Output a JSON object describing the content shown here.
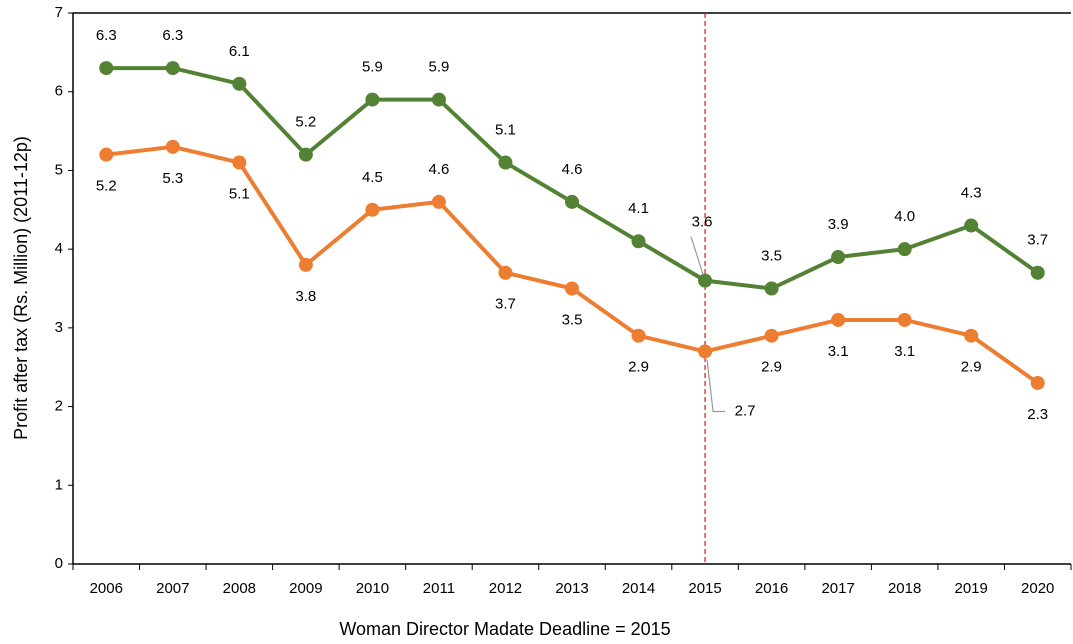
{
  "chart_data": {
    "type": "line",
    "x_label": "Woman Director Madate Deadline = 2015",
    "y_label": "Profit after tax (Rs. Million) (2011-12p)",
    "categories": [
      "2006",
      "2007",
      "2008",
      "2009",
      "2010",
      "2011",
      "2012",
      "2013",
      "2014",
      "2015",
      "2016",
      "2017",
      "2018",
      "2019",
      "2020"
    ],
    "series": [
      {
        "color": "#548235",
        "values": [
          6.3,
          6.3,
          6.1,
          5.2,
          5.9,
          5.9,
          5.1,
          4.6,
          4.1,
          3.6,
          3.5,
          3.9,
          4.0,
          4.3,
          3.7
        ],
        "value_labels": [
          "6.3",
          "6.3",
          "6.1",
          "5.2",
          "5.9",
          "5.9",
          "5.1",
          "4.6",
          "4.1",
          "3.6",
          "3.5",
          "3.9",
          "4.0",
          "4.3",
          "3.7"
        ]
      },
      {
        "color": "#ed7d31",
        "values": [
          5.2,
          5.3,
          5.1,
          3.8,
          4.5,
          4.6,
          3.7,
          3.5,
          2.9,
          2.7,
          2.9,
          3.1,
          3.1,
          2.9,
          2.3
        ]
      }
    ],
    "ylim": [
      0,
      7
    ],
    "yticks": [
      0,
      1,
      2,
      3,
      4,
      5,
      6,
      7
    ],
    "vline": "2015",
    "vline_color": "#e02020"
  }
}
